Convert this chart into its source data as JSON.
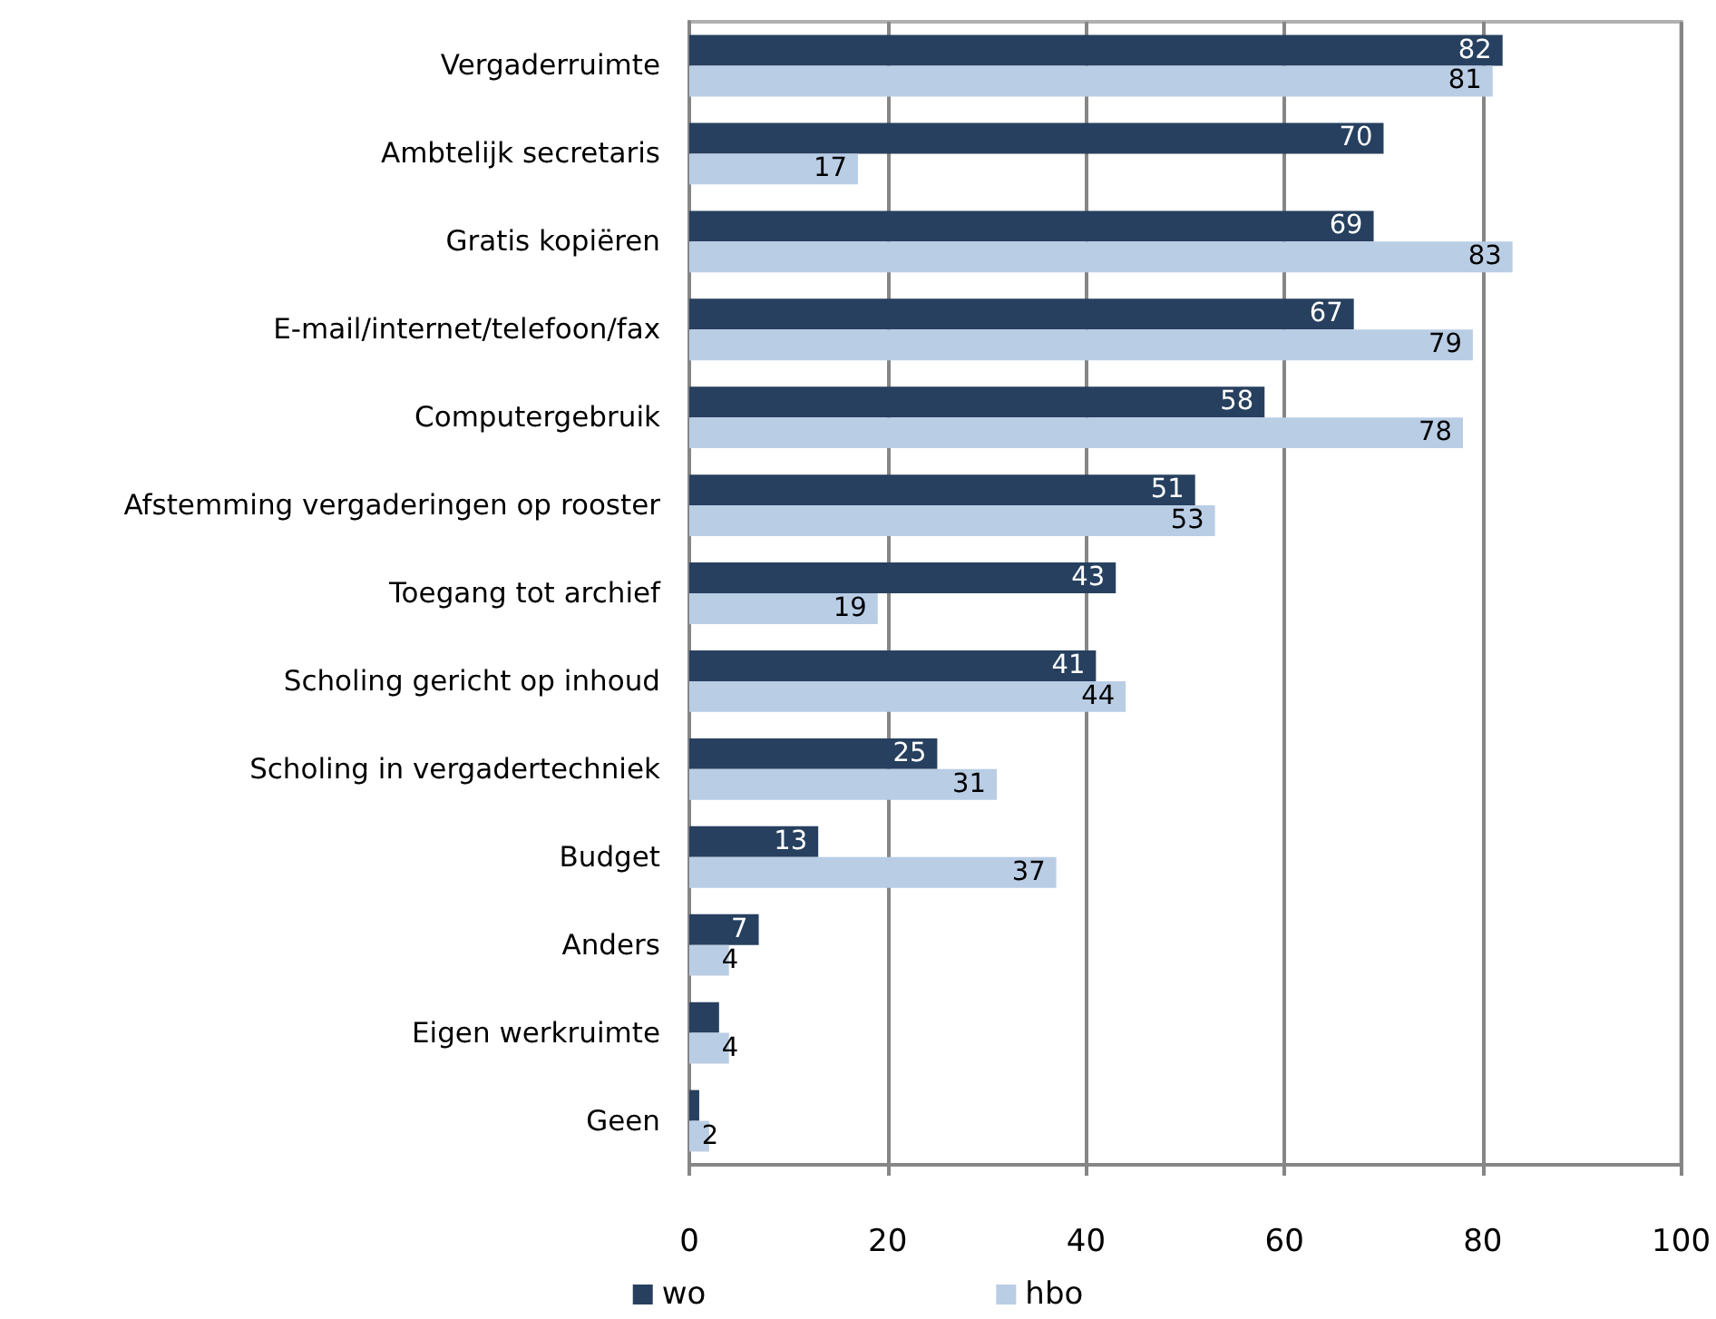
{
  "chart_data": {
    "type": "bar",
    "orientation": "horizontal",
    "categories": [
      "Vergaderruimte",
      "Ambtelijk secretaris",
      "Gratis kopiëren",
      "E-mail/internet/telefoon/fax",
      "Computergebruik",
      "Afstemming vergaderingen op rooster",
      "Toegang tot archief",
      "Scholing gericht op inhoud",
      "Scholing in vergadertechniek",
      "Budget",
      "Anders",
      "Eigen werkruimte",
      "Geen"
    ],
    "series": [
      {
        "name": "wo",
        "color": "#27405f",
        "values": [
          82,
          70,
          69,
          67,
          58,
          51,
          43,
          41,
          25,
          13,
          7,
          3,
          1
        ],
        "value_labels": [
          "82",
          "70",
          "69",
          "67",
          "58",
          "51",
          "43",
          "41",
          "25",
          "13",
          "7",
          null,
          null
        ]
      },
      {
        "name": "hbo",
        "color": "#b9cde5",
        "values": [
          81,
          17,
          83,
          79,
          78,
          53,
          19,
          44,
          31,
          37,
          4,
          4,
          2
        ],
        "value_labels": [
          "81",
          "17",
          "83",
          "79",
          "78",
          "53",
          "19",
          "44",
          "31",
          "37",
          "4",
          "4",
          "2"
        ]
      }
    ],
    "xlim": [
      0,
      100
    ],
    "xticks": [
      0,
      20,
      40,
      60,
      80,
      100
    ],
    "grid": "x",
    "legend": "bottom"
  }
}
